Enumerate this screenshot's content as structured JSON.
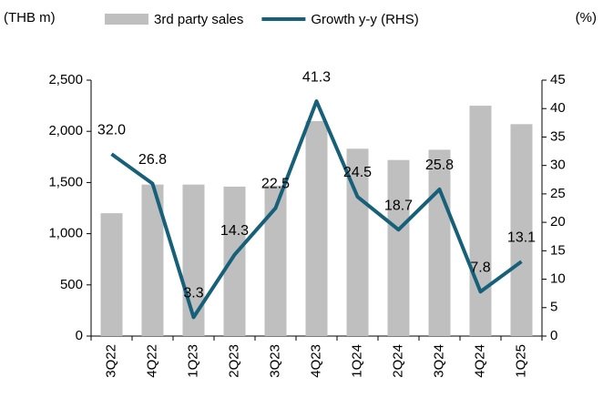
{
  "chart_data": {
    "type": "bar_line",
    "y_label": "(THB m)",
    "y2_label": "(%)",
    "categories": [
      "3Q22",
      "4Q22",
      "1Q23",
      "2Q23",
      "3Q23",
      "4Q23",
      "1Q24",
      "2Q24",
      "3Q24",
      "4Q24",
      "1Q25"
    ],
    "series": [
      {
        "name": "3rd party sales",
        "type": "bar",
        "color": "#bfbfbf",
        "values": [
          1200,
          1480,
          1480,
          1460,
          1470,
          2100,
          1830,
          1720,
          1820,
          2250,
          2070
        ]
      },
      {
        "name": "Growth y-y (RHS)",
        "type": "line",
        "axis": "y2",
        "color": "#17607a",
        "values": [
          32.0,
          26.8,
          3.3,
          14.3,
          22.5,
          41.3,
          24.5,
          18.7,
          25.8,
          7.8,
          13.1
        ],
        "value_labels": [
          "32.0",
          "26.8",
          "3.3",
          "14.3",
          "22.5",
          "41.3",
          "24.5",
          "18.7",
          "25.8",
          "7.8",
          "13.1"
        ]
      }
    ],
    "ylim": [
      0,
      2500
    ],
    "yticks": [
      0,
      500,
      {
        "value": 1000,
        "label": "1,000"
      },
      {
        "value": 1500,
        "label": "1,500"
      },
      {
        "value": 2000,
        "label": "2,000"
      },
      {
        "value": 2500,
        "label": "2,500"
      }
    ],
    "y2lim": [
      0,
      45
    ],
    "y2ticks": [
      0,
      5,
      10,
      15,
      20,
      25,
      30,
      35,
      40,
      45
    ],
    "legend": "top"
  }
}
